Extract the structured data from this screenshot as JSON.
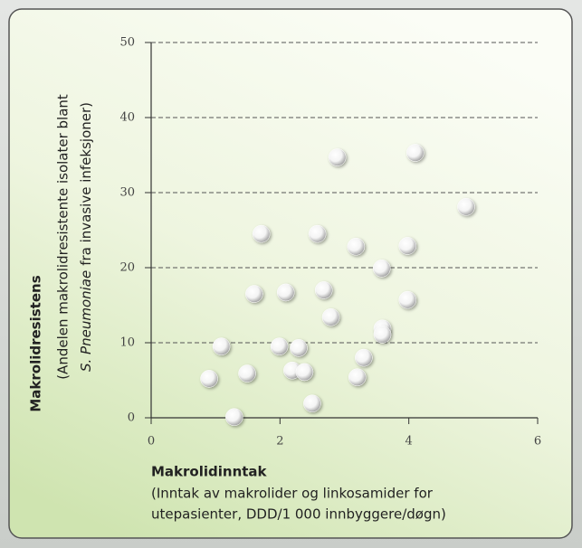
{
  "chart_data": {
    "type": "scatter",
    "x": [
      0.9,
      1.09,
      1.29,
      1.49,
      1.6,
      1.71,
      1.99,
      2.09,
      2.19,
      2.29,
      2.38,
      2.5,
      2.58,
      2.68,
      2.79,
      2.89,
      3.18,
      3.2,
      3.3,
      3.58,
      3.59,
      3.59,
      3.98,
      3.98,
      4.1,
      4.89
    ],
    "values": [
      5.2,
      9.5,
      0.1,
      5.9,
      16.5,
      24.5,
      9.5,
      16.7,
      6.3,
      9.3,
      6.1,
      1.9,
      24.5,
      17.0,
      13.4,
      34.7,
      22.8,
      5.4,
      8.0,
      19.9,
      11.9,
      11.1,
      22.9,
      15.7,
      35.3,
      28.1
    ],
    "color": "#ffffff",
    "xlim": [
      0,
      6
    ],
    "xticks": [
      0,
      2,
      4,
      6
    ],
    "ylim": [
      0,
      50
    ],
    "yticks": [
      0,
      10,
      20,
      30,
      40,
      50
    ],
    "grid": true,
    "x_label": {
      "title": "Makrolidinntak",
      "lines": [
        "(Inntak av makrolider og linkosamider for",
        "utepasienter, DDD/1 000 innbyggere/døgn)"
      ]
    },
    "y_label": {
      "title": "Makrolidresistens",
      "lines": [
        "(Andelen makrolidresistente isolater blant"
      ],
      "italic": "S. Pneumoniae",
      "rest": "fra invasive infeksjoner)"
    }
  }
}
